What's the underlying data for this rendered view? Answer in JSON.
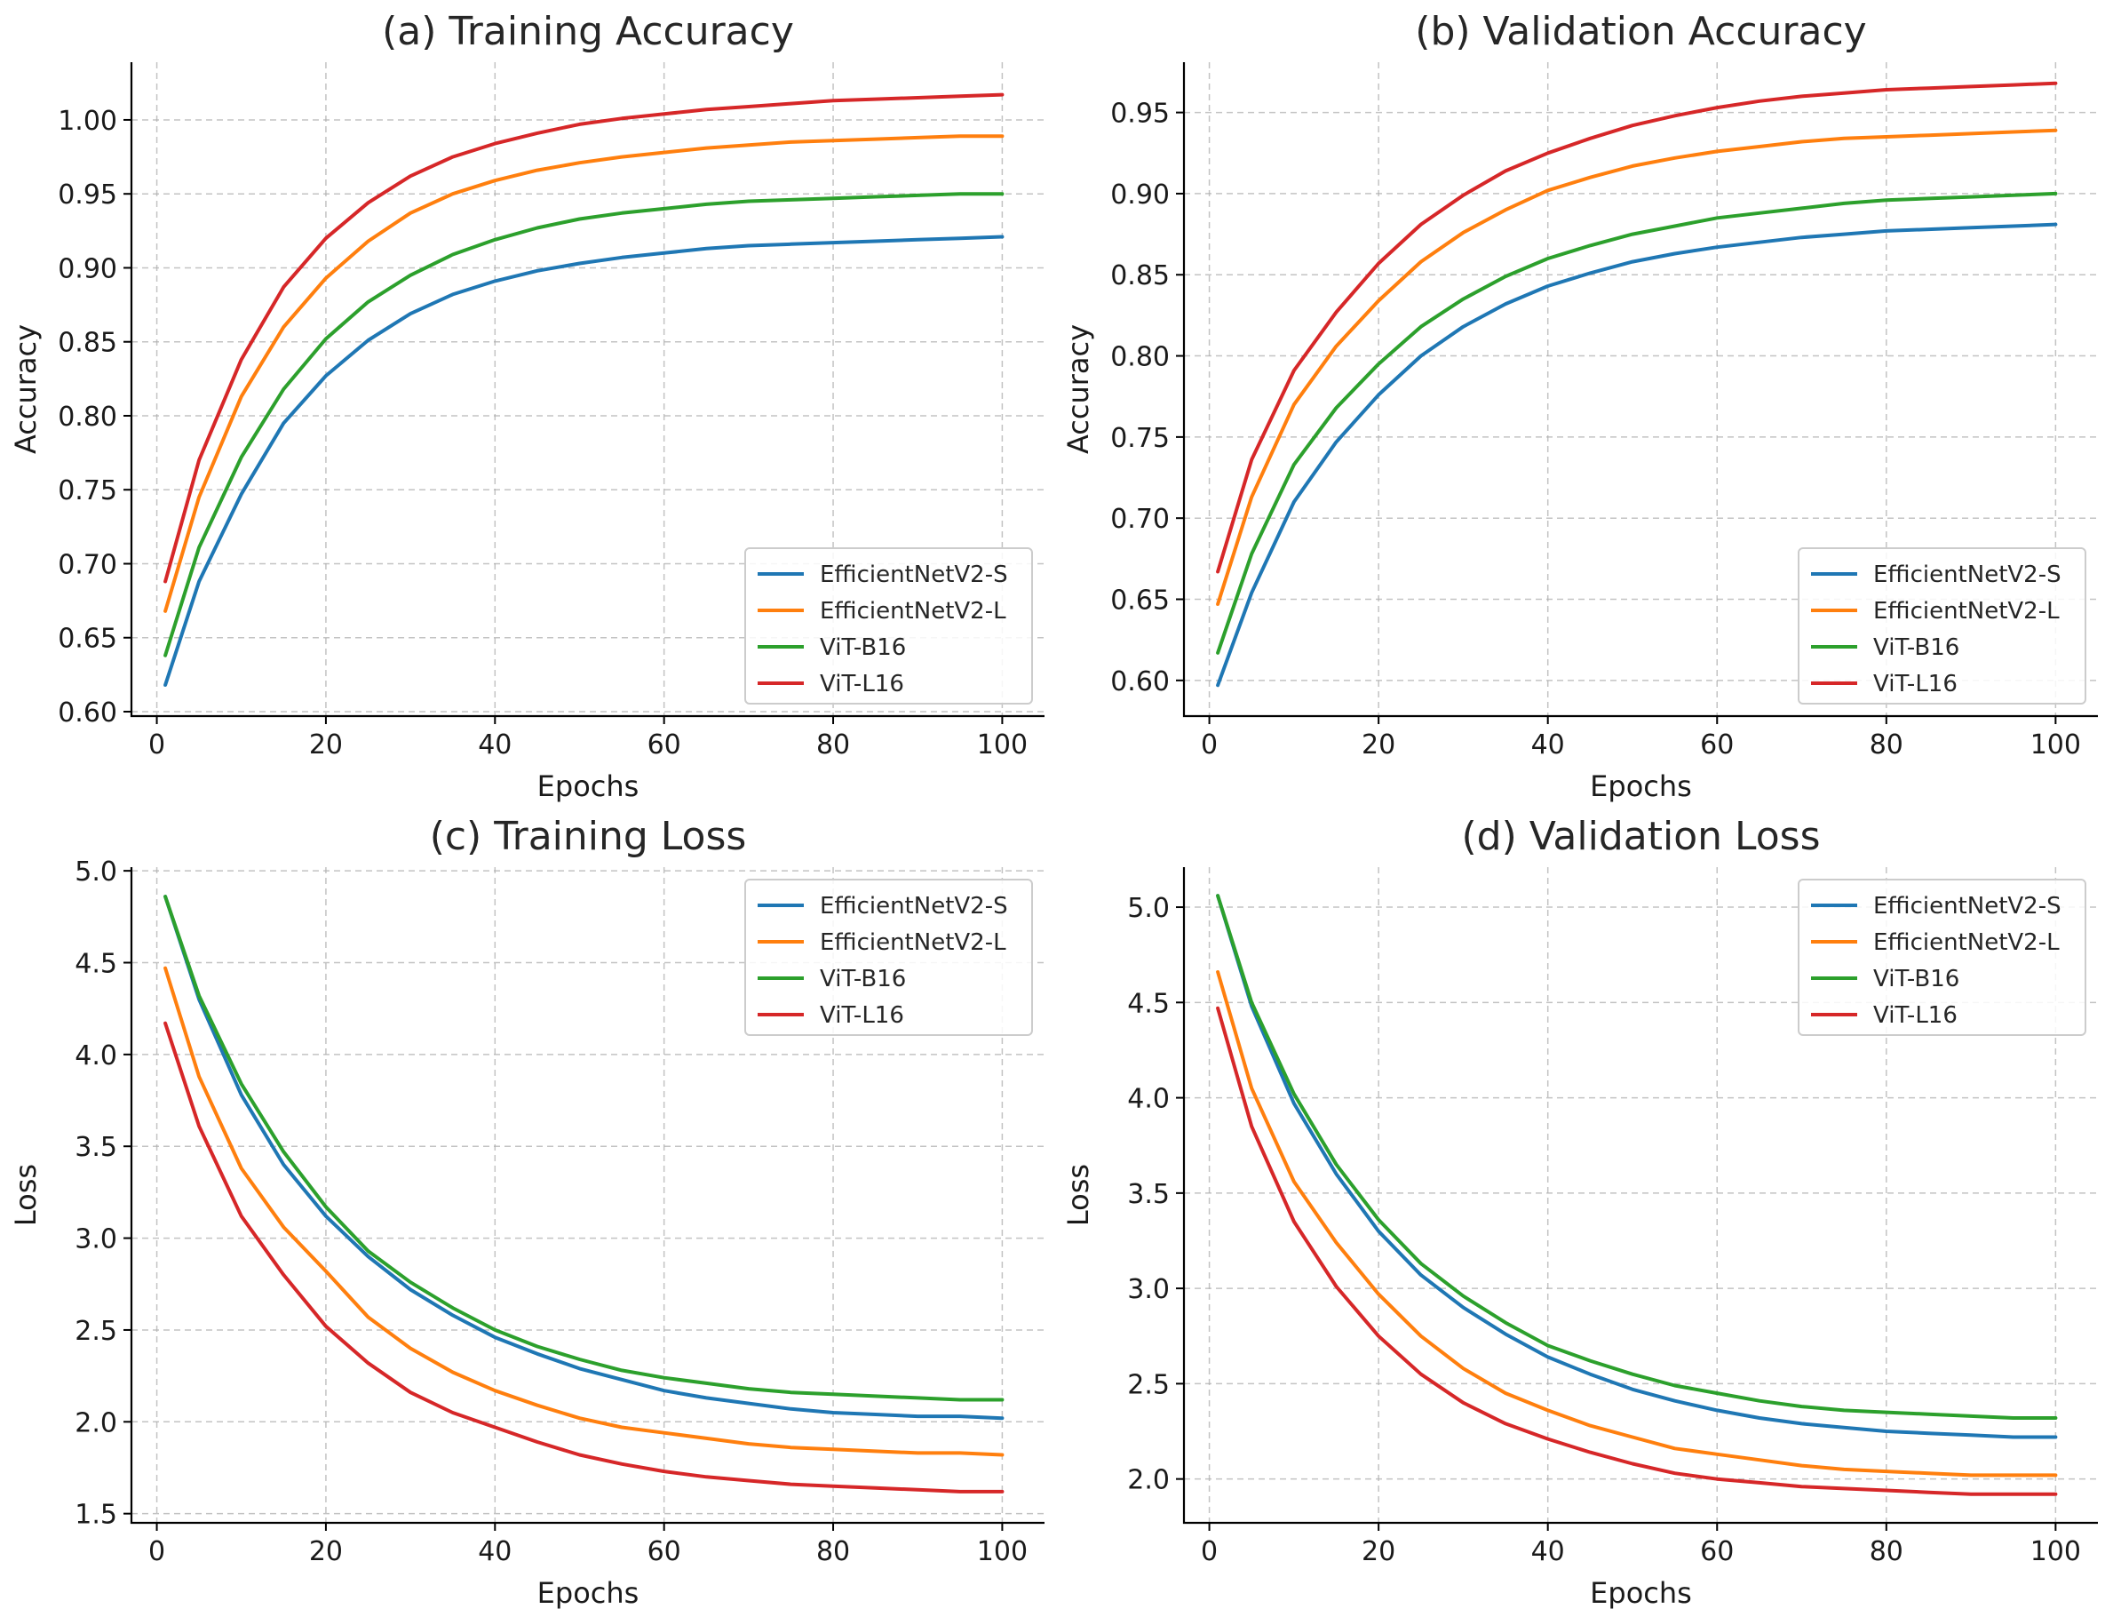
{
  "chart_data": [
    {
      "type": "line",
      "title": "(a) Training Accuracy",
      "xlabel": "Epochs",
      "ylabel": "Accuracy",
      "xlim": [
        -3,
        105
      ],
      "ylim": [
        0.597,
        1.039
      ],
      "xticks": [
        0,
        20,
        40,
        60,
        80,
        100
      ],
      "yticks": [
        0.6,
        0.65,
        0.7,
        0.75,
        0.8,
        0.85,
        0.9,
        0.95,
        1.0
      ],
      "ytick_decimals": 2,
      "grid": true,
      "legend_position": "lower-right",
      "x": [
        1,
        5,
        10,
        15,
        20,
        25,
        30,
        35,
        40,
        45,
        50,
        55,
        60,
        65,
        70,
        75,
        80,
        85,
        90,
        95,
        100
      ],
      "series": [
        {
          "name": "EfficientNetV2-S",
          "color": "#1f77b4",
          "values": [
            0.618,
            0.688,
            0.747,
            0.795,
            0.827,
            0.851,
            0.869,
            0.882,
            0.891,
            0.898,
            0.903,
            0.907,
            0.91,
            0.913,
            0.915,
            0.916,
            0.917,
            0.918,
            0.919,
            0.92,
            0.921
          ]
        },
        {
          "name": "EfficientNetV2-L",
          "color": "#ff7f0e",
          "values": [
            0.668,
            0.745,
            0.813,
            0.86,
            0.893,
            0.918,
            0.937,
            0.95,
            0.959,
            0.966,
            0.971,
            0.975,
            0.978,
            0.981,
            0.983,
            0.985,
            0.986,
            0.987,
            0.988,
            0.989,
            0.989
          ]
        },
        {
          "name": "ViT-B16",
          "color": "#2ca02c",
          "values": [
            0.638,
            0.711,
            0.772,
            0.818,
            0.852,
            0.877,
            0.895,
            0.909,
            0.919,
            0.927,
            0.933,
            0.937,
            0.94,
            0.943,
            0.945,
            0.946,
            0.947,
            0.948,
            0.949,
            0.95,
            0.95
          ]
        },
        {
          "name": "ViT-L16",
          "color": "#d62728",
          "values": [
            0.688,
            0.77,
            0.838,
            0.887,
            0.92,
            0.944,
            0.962,
            0.975,
            0.984,
            0.991,
            0.997,
            1.001,
            1.004,
            1.007,
            1.009,
            1.011,
            1.013,
            1.014,
            1.015,
            1.016,
            1.017
          ]
        }
      ]
    },
    {
      "type": "line",
      "title": "(b) Validation Accuracy",
      "xlabel": "Epochs",
      "ylabel": "Accuracy",
      "xlim": [
        -3,
        105
      ],
      "ylim": [
        0.578,
        0.981
      ],
      "xticks": [
        0,
        20,
        40,
        60,
        80,
        100
      ],
      "yticks": [
        0.6,
        0.65,
        0.7,
        0.75,
        0.8,
        0.85,
        0.9,
        0.95
      ],
      "ytick_decimals": 2,
      "grid": true,
      "legend_position": "lower-right",
      "x": [
        1,
        5,
        10,
        15,
        20,
        25,
        30,
        35,
        40,
        45,
        50,
        55,
        60,
        65,
        70,
        75,
        80,
        85,
        90,
        95,
        100
      ],
      "series": [
        {
          "name": "EfficientNetV2-S",
          "color": "#1f77b4",
          "values": [
            0.597,
            0.654,
            0.71,
            0.747,
            0.776,
            0.8,
            0.818,
            0.832,
            0.843,
            0.851,
            0.858,
            0.863,
            0.867,
            0.87,
            0.873,
            0.875,
            0.877,
            0.878,
            0.879,
            0.88,
            0.881
          ]
        },
        {
          "name": "EfficientNetV2-L",
          "color": "#ff7f0e",
          "values": [
            0.647,
            0.713,
            0.77,
            0.806,
            0.834,
            0.858,
            0.876,
            0.89,
            0.902,
            0.91,
            0.917,
            0.922,
            0.926,
            0.929,
            0.932,
            0.934,
            0.935,
            0.936,
            0.937,
            0.938,
            0.939
          ]
        },
        {
          "name": "ViT-B16",
          "color": "#2ca02c",
          "values": [
            0.617,
            0.678,
            0.733,
            0.768,
            0.795,
            0.818,
            0.835,
            0.849,
            0.86,
            0.868,
            0.875,
            0.88,
            0.885,
            0.888,
            0.891,
            0.894,
            0.896,
            0.897,
            0.898,
            0.899,
            0.9
          ]
        },
        {
          "name": "ViT-L16",
          "color": "#d62728",
          "values": [
            0.667,
            0.736,
            0.791,
            0.827,
            0.857,
            0.881,
            0.899,
            0.914,
            0.925,
            0.934,
            0.942,
            0.948,
            0.953,
            0.957,
            0.96,
            0.962,
            0.964,
            0.965,
            0.966,
            0.967,
            0.968
          ]
        }
      ]
    },
    {
      "type": "line",
      "title": "(c) Training Loss",
      "xlabel": "Epochs",
      "ylabel": "Loss",
      "xlim": [
        -3,
        105
      ],
      "ylim": [
        1.45,
        5.02
      ],
      "xticks": [
        0,
        20,
        40,
        60,
        80,
        100
      ],
      "yticks": [
        1.5,
        2.0,
        2.5,
        3.0,
        3.5,
        4.0,
        4.5,
        5.0
      ],
      "ytick_decimals": 1,
      "grid": true,
      "legend_position": "upper-right",
      "x": [
        1,
        5,
        10,
        15,
        20,
        25,
        30,
        35,
        40,
        45,
        50,
        55,
        60,
        65,
        70,
        75,
        80,
        85,
        90,
        95,
        100
      ],
      "series": [
        {
          "name": "EfficientNetV2-S",
          "color": "#1f77b4",
          "values": [
            4.86,
            4.3,
            3.78,
            3.4,
            3.12,
            2.9,
            2.72,
            2.58,
            2.46,
            2.37,
            2.29,
            2.23,
            2.17,
            2.13,
            2.1,
            2.07,
            2.05,
            2.04,
            2.03,
            2.03,
            2.02
          ]
        },
        {
          "name": "EfficientNetV2-L",
          "color": "#ff7f0e",
          "values": [
            4.47,
            3.88,
            3.38,
            3.06,
            2.82,
            2.57,
            2.4,
            2.27,
            2.17,
            2.09,
            2.02,
            1.97,
            1.94,
            1.91,
            1.88,
            1.86,
            1.85,
            1.84,
            1.83,
            1.83,
            1.82
          ]
        },
        {
          "name": "ViT-B16",
          "color": "#2ca02c",
          "values": [
            4.86,
            4.32,
            3.84,
            3.47,
            3.17,
            2.93,
            2.76,
            2.62,
            2.5,
            2.41,
            2.34,
            2.28,
            2.24,
            2.21,
            2.18,
            2.16,
            2.15,
            2.14,
            2.13,
            2.12,
            2.12
          ]
        },
        {
          "name": "ViT-L16",
          "color": "#d62728",
          "values": [
            4.17,
            3.61,
            3.12,
            2.8,
            2.52,
            2.32,
            2.16,
            2.05,
            1.97,
            1.89,
            1.82,
            1.77,
            1.73,
            1.7,
            1.68,
            1.66,
            1.65,
            1.64,
            1.63,
            1.62,
            1.62
          ]
        }
      ]
    },
    {
      "type": "line",
      "title": "(d) Validation Loss",
      "xlabel": "Epochs",
      "ylabel": "Loss",
      "xlim": [
        -3,
        105
      ],
      "ylim": [
        1.77,
        5.21
      ],
      "xticks": [
        0,
        20,
        40,
        60,
        80,
        100
      ],
      "yticks": [
        2.0,
        2.5,
        3.0,
        3.5,
        4.0,
        4.5,
        5.0
      ],
      "ytick_decimals": 1,
      "grid": true,
      "legend_position": "upper-right",
      "x": [
        1,
        5,
        10,
        15,
        20,
        25,
        30,
        35,
        40,
        45,
        50,
        55,
        60,
        65,
        70,
        75,
        80,
        85,
        90,
        95,
        100
      ],
      "series": [
        {
          "name": "EfficientNetV2-S",
          "color": "#1f77b4",
          "values": [
            5.06,
            4.48,
            3.97,
            3.6,
            3.3,
            3.07,
            2.9,
            2.76,
            2.64,
            2.55,
            2.47,
            2.41,
            2.36,
            2.32,
            2.29,
            2.27,
            2.25,
            2.24,
            2.23,
            2.22,
            2.22
          ]
        },
        {
          "name": "EfficientNetV2-L",
          "color": "#ff7f0e",
          "values": [
            4.66,
            4.05,
            3.56,
            3.24,
            2.97,
            2.75,
            2.58,
            2.45,
            2.36,
            2.28,
            2.22,
            2.16,
            2.13,
            2.1,
            2.07,
            2.05,
            2.04,
            2.03,
            2.02,
            2.02,
            2.02
          ]
        },
        {
          "name": "ViT-B16",
          "color": "#2ca02c",
          "values": [
            5.06,
            4.5,
            4.02,
            3.65,
            3.36,
            3.13,
            2.96,
            2.82,
            2.7,
            2.62,
            2.55,
            2.49,
            2.45,
            2.41,
            2.38,
            2.36,
            2.35,
            2.34,
            2.33,
            2.32,
            2.32
          ]
        },
        {
          "name": "ViT-L16",
          "color": "#d62728",
          "values": [
            4.47,
            3.85,
            3.35,
            3.01,
            2.75,
            2.55,
            2.4,
            2.29,
            2.21,
            2.14,
            2.08,
            2.03,
            2.0,
            1.98,
            1.96,
            1.95,
            1.94,
            1.93,
            1.92,
            1.92,
            1.92
          ]
        }
      ]
    }
  ]
}
